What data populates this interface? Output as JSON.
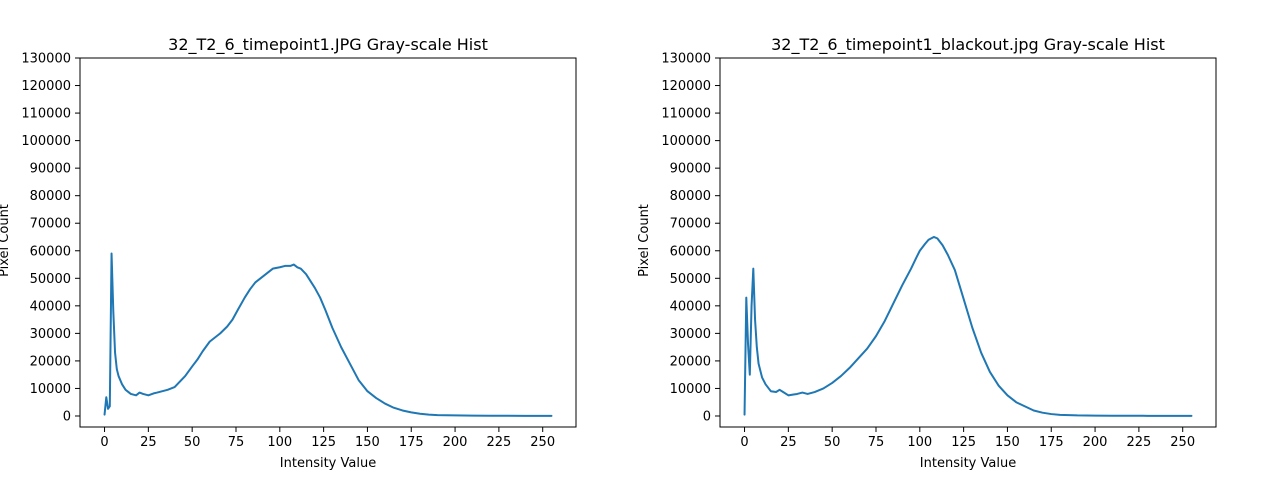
{
  "colors": {
    "series": "#1f77b4",
    "axes": "#000000",
    "background": "#ffffff"
  },
  "chart_data": [
    {
      "type": "line",
      "title": "32_T2_6_timepoint1.JPG Gray-scale Hist",
      "xlabel": "Intensity Value",
      "ylabel": "Pixel Count",
      "xlim": [
        -14,
        269
      ],
      "ylim": [
        -4000,
        130000
      ],
      "xticks": [
        0,
        25,
        50,
        75,
        100,
        125,
        150,
        175,
        200,
        225,
        250
      ],
      "yticks": [
        0,
        10000,
        20000,
        30000,
        40000,
        50000,
        60000,
        70000,
        80000,
        90000,
        100000,
        110000,
        120000,
        130000
      ],
      "grid": false,
      "series": [
        {
          "x": [
            0,
            1,
            2,
            3,
            4,
            5,
            6,
            7,
            8,
            10,
            12,
            15,
            18,
            20,
            22,
            25,
            28,
            30,
            33,
            36,
            40,
            43,
            46,
            50,
            53,
            56,
            60,
            63,
            66,
            70,
            73,
            76,
            80,
            83,
            86,
            90,
            93,
            96,
            100,
            103,
            106,
            108,
            110,
            112,
            115,
            118,
            120,
            123,
            126,
            130,
            135,
            140,
            145,
            150,
            155,
            160,
            165,
            170,
            175,
            180,
            185,
            190,
            200,
            210,
            220,
            230,
            240,
            255
          ],
          "y": [
            500,
            6800,
            2600,
            3500,
            59000,
            38000,
            23000,
            17000,
            14500,
            11500,
            9500,
            8000,
            7500,
            8500,
            8000,
            7500,
            8200,
            8500,
            9000,
            9500,
            10500,
            12500,
            14500,
            18000,
            20500,
            23500,
            27000,
            28500,
            30000,
            32500,
            35000,
            38500,
            43000,
            46000,
            48500,
            50500,
            52000,
            53500,
            54000,
            54500,
            54500,
            55000,
            54000,
            53500,
            51500,
            48500,
            46500,
            43000,
            38500,
            32000,
            25000,
            19000,
            13000,
            9000,
            6500,
            4500,
            3000,
            2000,
            1300,
            800,
            500,
            300,
            200,
            150,
            100,
            80,
            50,
            20
          ]
        }
      ]
    },
    {
      "type": "line",
      "title": "32_T2_6_timepoint1_blackout.jpg Gray-scale Hist",
      "xlabel": "Intensity Value",
      "ylabel": "Pixel Count",
      "xlim": [
        -14,
        269
      ],
      "ylim": [
        -4000,
        130000
      ],
      "xticks": [
        0,
        25,
        50,
        75,
        100,
        125,
        150,
        175,
        200,
        225,
        250
      ],
      "yticks": [
        0,
        10000,
        20000,
        30000,
        40000,
        50000,
        60000,
        70000,
        80000,
        90000,
        100000,
        110000,
        120000,
        130000
      ],
      "grid": false,
      "series": [
        {
          "x": [
            0,
            1,
            2,
            3,
            4,
            5,
            6,
            7,
            8,
            10,
            12,
            15,
            18,
            20,
            22,
            25,
            28,
            30,
            33,
            36,
            40,
            45,
            50,
            55,
            60,
            65,
            70,
            75,
            80,
            85,
            90,
            95,
            98,
            100,
            103,
            105,
            108,
            110,
            113,
            116,
            120,
            125,
            130,
            135,
            140,
            145,
            150,
            155,
            160,
            165,
            170,
            175,
            180,
            185,
            190,
            200,
            210,
            220,
            230,
            240,
            255
          ],
          "y": [
            500,
            43000,
            26000,
            15000,
            40000,
            53500,
            35000,
            25000,
            19000,
            14000,
            11500,
            9000,
            8700,
            9500,
            8700,
            7500,
            7800,
            8000,
            8500,
            8000,
            8700,
            10000,
            12000,
            14500,
            17500,
            21000,
            24500,
            29000,
            34500,
            41000,
            47500,
            53500,
            57500,
            60000,
            62500,
            64000,
            65000,
            64500,
            62000,
            58500,
            53000,
            42500,
            32000,
            23000,
            16000,
            11000,
            7500,
            5000,
            3500,
            2000,
            1200,
            700,
            400,
            300,
            200,
            150,
            100,
            80,
            60,
            40,
            20
          ]
        }
      ]
    }
  ]
}
